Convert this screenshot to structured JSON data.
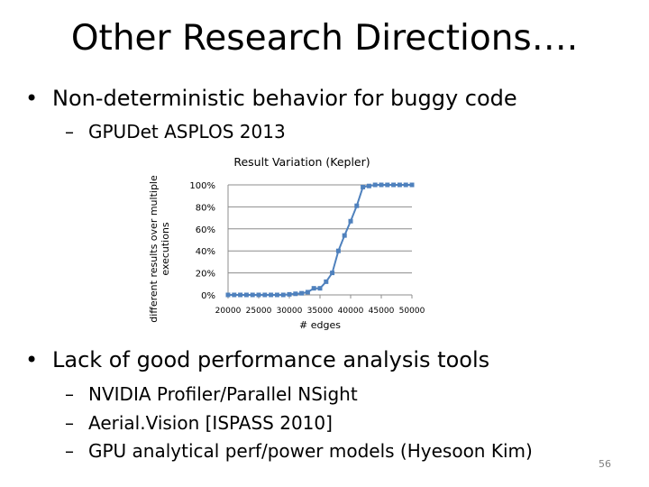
{
  "slide": {
    "title": "Other Research Directions….",
    "bullets": [
      {
        "text": "Non-deterministic behavior for buggy code",
        "subs": [
          "GPUDet ASPLOS 2013"
        ]
      },
      {
        "text": "Lack of good performance analysis tools",
        "subs": [
          "NVIDIA Profiler/Parallel NSight",
          "Aerial.Vision [ISPASS 2010]",
          "GPU analytical perf/power models (Hyesoon Kim)"
        ]
      }
    ],
    "bullet_glyph": "•",
    "dash_glyph": "–",
    "page_number": "56"
  },
  "chart_data": {
    "type": "line",
    "title": "Result Variation (Kepler)",
    "xlabel": "# edges",
    "ylabel": "different results over multiple executions",
    "ylabel_lines": [
      "different results over multiple",
      "executions"
    ],
    "xlim": [
      20000,
      50000
    ],
    "ylim": [
      0,
      100
    ],
    "x_ticks": [
      20000,
      25000,
      30000,
      35000,
      40000,
      45000,
      50000
    ],
    "x_tick_labels": [
      "20000",
      "25000",
      "30000",
      "35000",
      "40000",
      "45000",
      "50000"
    ],
    "y_ticks": [
      0,
      20,
      40,
      60,
      80,
      100
    ],
    "y_tick_labels": [
      "0%",
      "20%",
      "40%",
      "60%",
      "80%",
      "100%"
    ],
    "grid": true,
    "legend": "none",
    "color": "#4f81bd",
    "series": [
      {
        "x": [
          20000,
          21000,
          22000,
          23000,
          24000,
          25000,
          26000,
          27000,
          28000,
          29000,
          30000,
          31000,
          32000,
          33000,
          34000,
          35000,
          36000,
          37000,
          38000,
          39000,
          40000,
          41000,
          42000,
          43000,
          44000,
          45000,
          46000,
          47000,
          48000,
          49000,
          50000
        ],
        "y": [
          0,
          0,
          0,
          0,
          0,
          0,
          0,
          0,
          0,
          0,
          0.5,
          1,
          1.5,
          2.5,
          6,
          6,
          12,
          20,
          40,
          54,
          67,
          81,
          98,
          99,
          100,
          100,
          100,
          100,
          100,
          100,
          100
        ]
      }
    ]
  }
}
